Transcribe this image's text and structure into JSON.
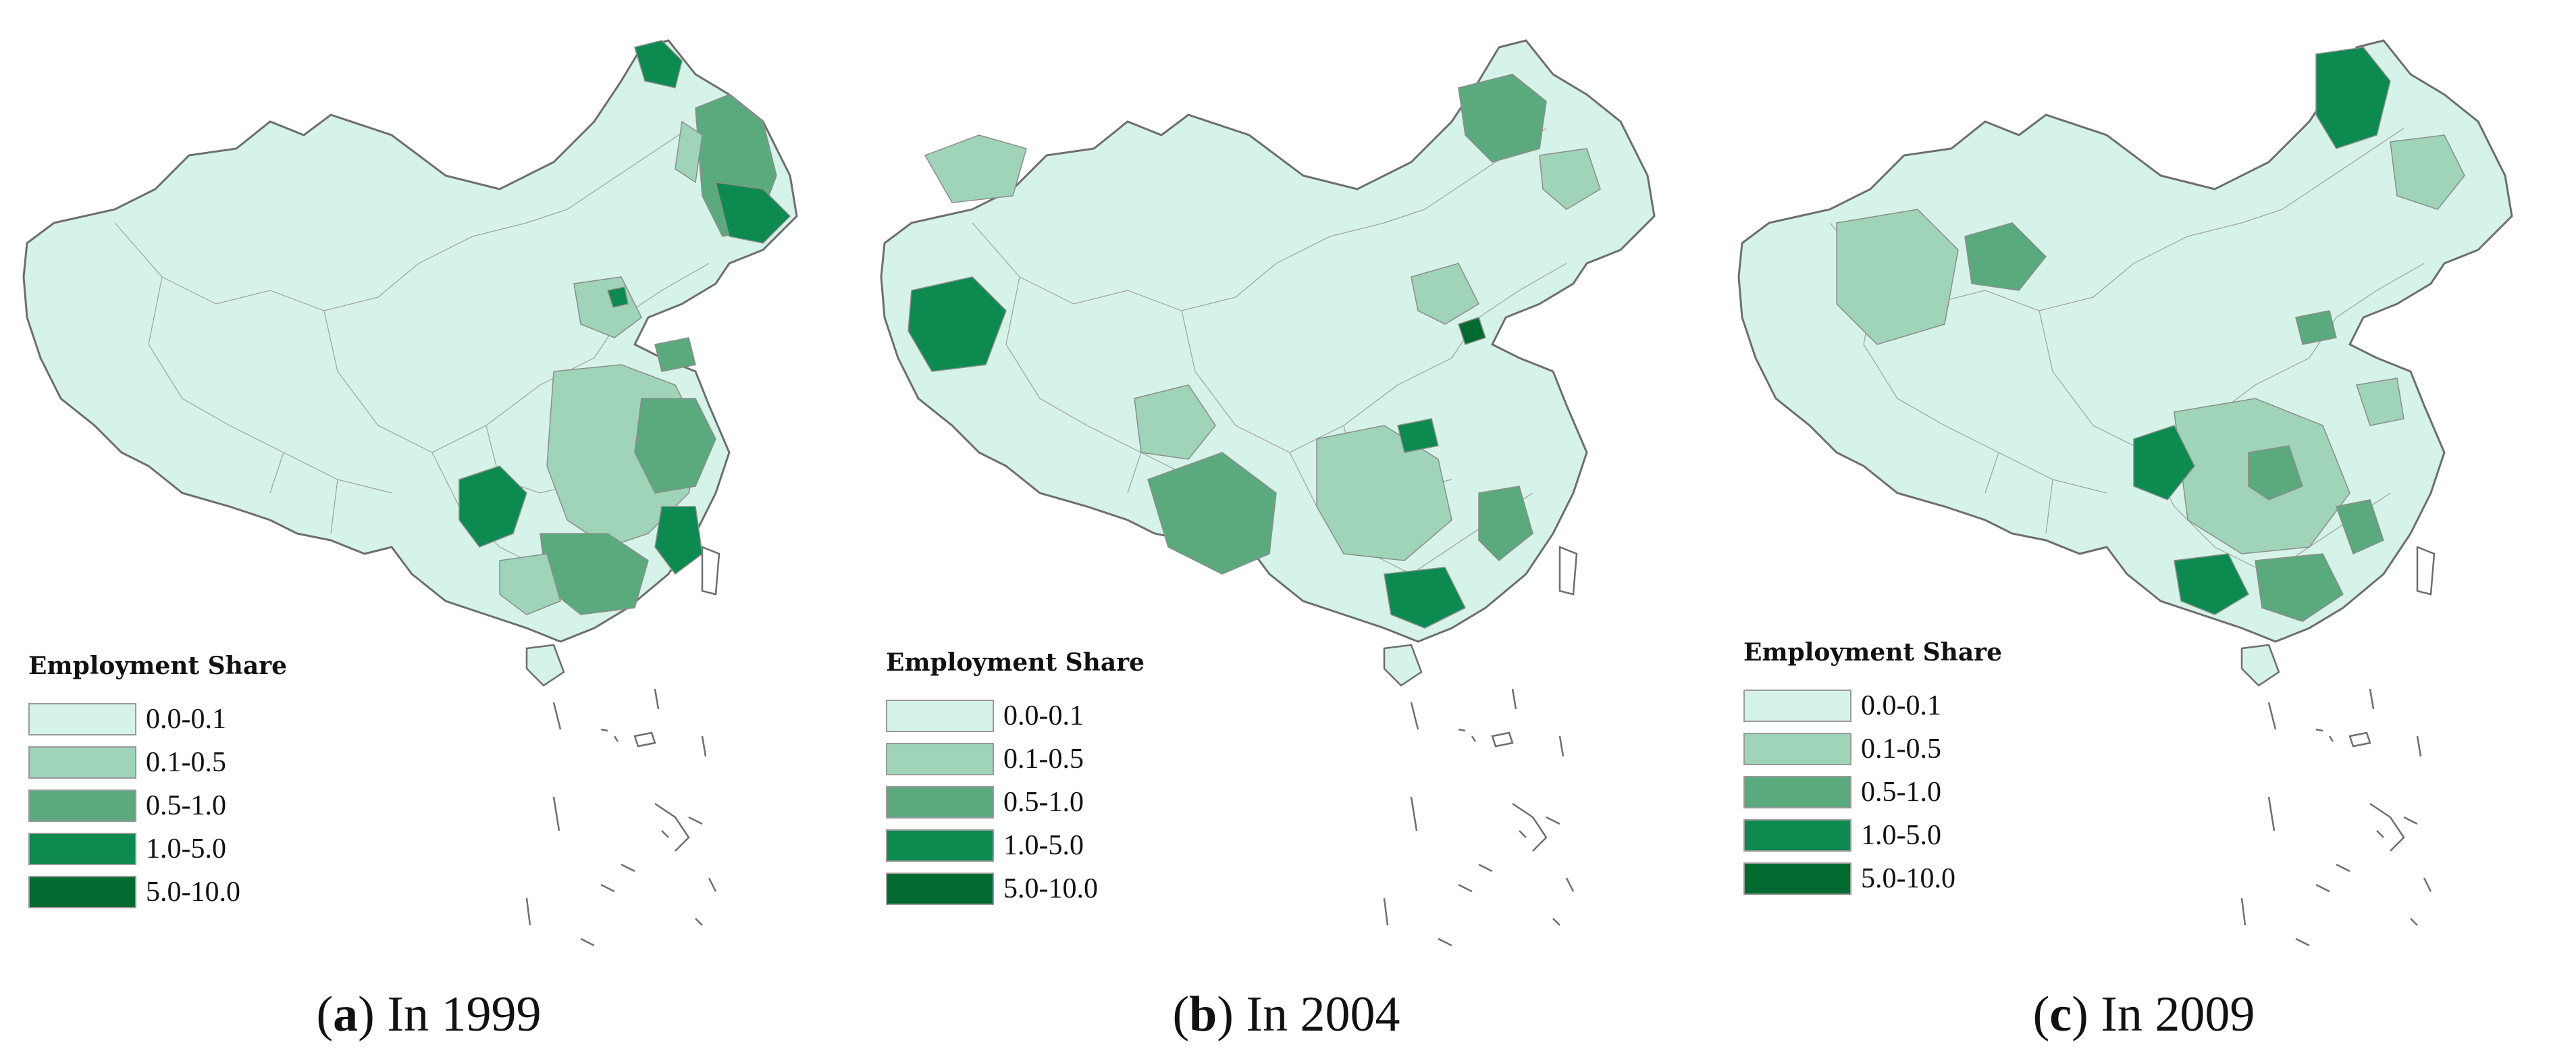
{
  "legend": {
    "title": "Employment Share",
    "classes": [
      {
        "label": "0.0-0.1",
        "color": "#d6f3e9"
      },
      {
        "label": "0.1-0.5",
        "color": "#9fd4b8"
      },
      {
        "label": "0.5-1.0",
        "color": "#5aaa7e"
      },
      {
        "label": "1.0-5.0",
        "color": "#0c8a50"
      },
      {
        "label": "5.0-10.0",
        "color": "#006a30"
      }
    ]
  },
  "panels": [
    {
      "letter": "a",
      "caption": " In 1999"
    },
    {
      "letter": "b",
      "caption": " In 2004"
    },
    {
      "letter": "c",
      "caption": " In 2009"
    }
  ],
  "colors": {
    "base": "#d6f3e9",
    "class_2": "#9fd4b8",
    "class_3": "#5aaa7e",
    "class_4": "#0c8a50",
    "class_5": "#006a30",
    "border": "#8c8c8c"
  }
}
